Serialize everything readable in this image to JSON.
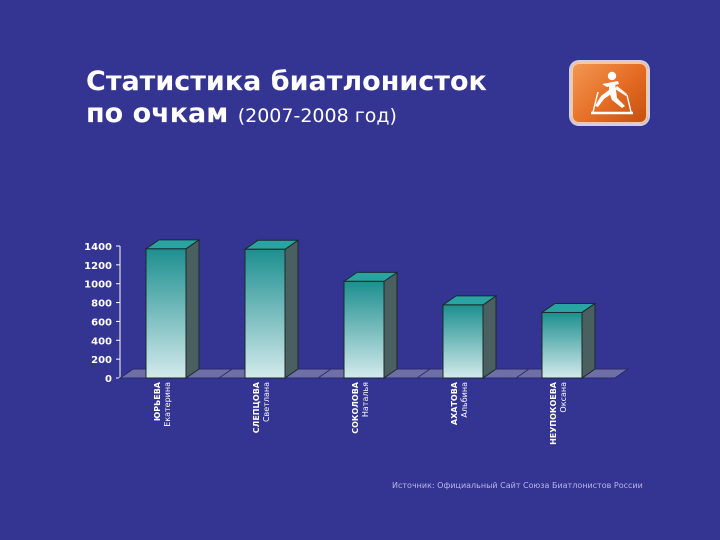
{
  "title": {
    "line1": "Статистика биатлонисток",
    "line2_bold": "по очкам",
    "line2_rest": "(2007-2008 год)"
  },
  "logo": {
    "icon": "biathlon-skier-icon"
  },
  "chart_data": {
    "type": "bar",
    "categories": [
      {
        "surname": "ЮРЬЕВА",
        "name": "Екатерина"
      },
      {
        "surname": "СЛЕПЦОВА",
        "name": "Светлана"
      },
      {
        "surname": "СОКОЛОВА",
        "name": "Наталья"
      },
      {
        "surname": "АХАТОВА",
        "name": "Альбина"
      },
      {
        "surname": "НЕУПОКОЕВА",
        "name": "Оксана"
      }
    ],
    "values": [
      1370,
      1365,
      1025,
      775,
      695
    ],
    "ylim": [
      0,
      1400
    ],
    "yticks": [
      0,
      200,
      400,
      600,
      800,
      1000,
      1200,
      1400
    ],
    "grid": false,
    "colors": {
      "bar_top": "#1d8f8f",
      "bar_bottom": "#cfe7ea",
      "side": "#4a5f5f",
      "floor": "#6f6fa8"
    }
  },
  "source": "Источник: Официальный Сайт Союза Биатлонистов России"
}
